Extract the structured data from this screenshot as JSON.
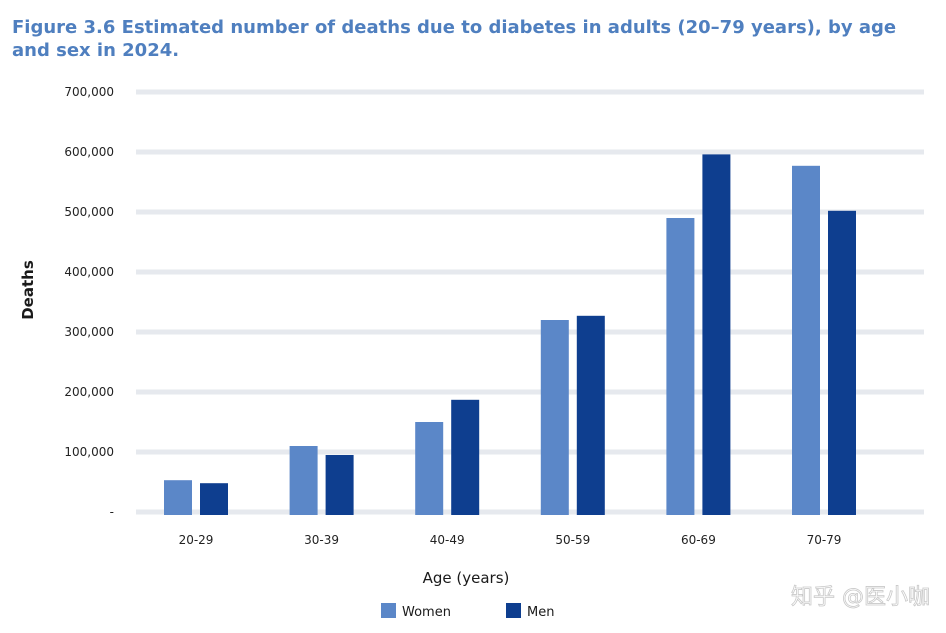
{
  "chart_data": {
    "type": "bar",
    "title": "Figure 3.6 Estimated number of deaths due to diabetes in adults (20–79 years), by age and sex in 2024.",
    "xlabel": "Age (years)",
    "ylabel": "Deaths",
    "categories": [
      "20-29",
      "30-39",
      "40-49",
      "50-59",
      "60-69",
      "70-79"
    ],
    "series": [
      {
        "name": "Women",
        "color": "#5b87c8",
        "values": [
          53000,
          110000,
          150000,
          320000,
          490000,
          577000
        ]
      },
      {
        "name": "Men",
        "color": "#0e3e8f",
        "values": [
          48000,
          95000,
          187000,
          327000,
          596000,
          502000
        ]
      }
    ],
    "ylim": [
      0,
      700000
    ],
    "yticks": [
      0,
      100000,
      200000,
      300000,
      400000,
      500000,
      600000,
      700000
    ],
    "ytick_labels": [
      "-",
      "100,000",
      "200,000",
      "300,000",
      "400,000",
      "500,000",
      "600,000",
      "700,000"
    ],
    "grid": true,
    "gridline_color": "#e6e9ee",
    "legend_position": "bottom-center"
  },
  "watermark": {
    "text": "知乎 @医小咖"
  }
}
